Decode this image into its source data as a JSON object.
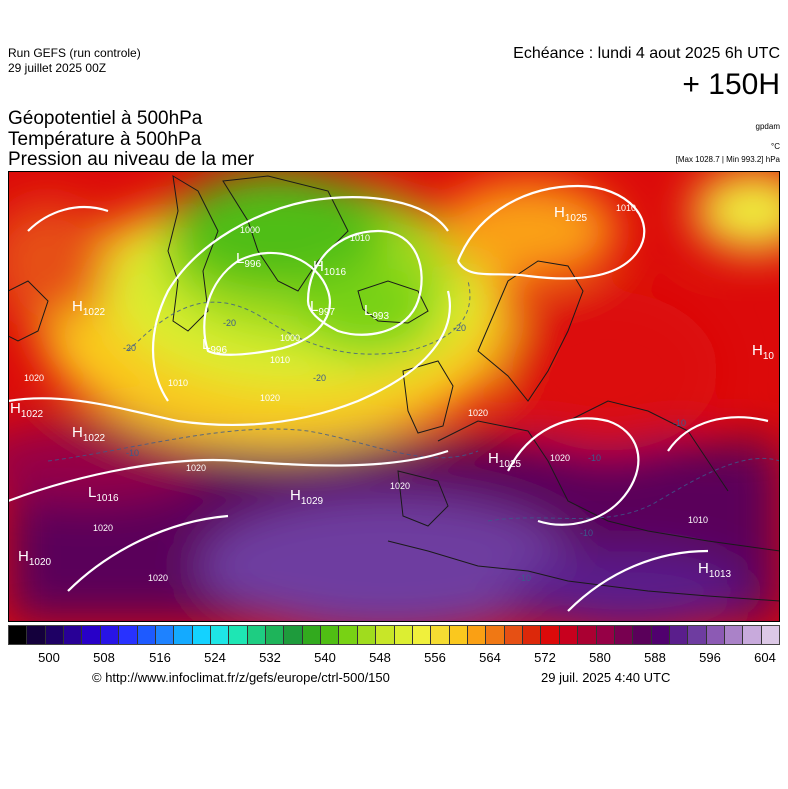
{
  "header": {
    "run_title": "Run GEFS (run controle)",
    "run_date": "29 juillet 2025 00Z",
    "echeance": "Echéance : lundi 4 aout 2025 6h UTC",
    "lead_time": "+ 150H"
  },
  "params": {
    "line1": "Géopotentiel à 500hPa",
    "line2": "Température à 500hPa",
    "line3": "Pression au niveau de la mer",
    "unit_geopotential": "gpdam",
    "unit_temperature": "°C",
    "max_min": "[Max 1028.7 | Min 993.2] hPa"
  },
  "colors": {
    "scale": [
      "#000000",
      "#14003c",
      "#1e0064",
      "#280096",
      "#2800c8",
      "#2814e6",
      "#2832ff",
      "#1e5aff",
      "#1e82ff",
      "#14aaff",
      "#14d2ff",
      "#1ee6e6",
      "#1ee6b4",
      "#1ecd82",
      "#1eb45a",
      "#1e9b3c",
      "#32aa1e",
      "#50be14",
      "#78d214",
      "#a0dc1e",
      "#c8e628",
      "#dcee32",
      "#f0f03c",
      "#f5dc32",
      "#fac81e",
      "#faa014",
      "#f07814",
      "#e65014",
      "#dc280a",
      "#dc0a0a",
      "#c8001e",
      "#aa0032",
      "#960046",
      "#780050",
      "#5a005a",
      "#50006e",
      "#5a1e8c",
      "#6e3ca0",
      "#8c5ab4",
      "#aa82c8",
      "#c8aadc",
      "#dcc8e6"
    ]
  },
  "colorbar": {
    "ticks": [
      "500",
      "508",
      "516",
      "524",
      "532",
      "540",
      "548",
      "556",
      "564",
      "572",
      "580",
      "588",
      "596",
      "604"
    ]
  },
  "pressure_systems": [
    {
      "type": "H",
      "value": "1025"
    },
    {
      "type": "L",
      "value": "996"
    },
    {
      "type": "H",
      "value": "1016"
    },
    {
      "type": "L",
      "value": "997"
    },
    {
      "type": "L",
      "value": "993"
    },
    {
      "type": "H",
      "value": "1022"
    },
    {
      "type": "L",
      "value": "996"
    },
    {
      "type": "H",
      "value": "1022"
    },
    {
      "type": "H",
      "value": "1022"
    },
    {
      "type": "L",
      "value": "1016"
    },
    {
      "type": "H",
      "value": "1029"
    },
    {
      "type": "H",
      "value": "1020"
    },
    {
      "type": "H",
      "value": "1025"
    },
    {
      "type": "H",
      "value": "1013"
    },
    {
      "type": "H",
      "value": "10"
    }
  ],
  "isobar_labels": [
    "1000",
    "1010",
    "1010",
    "1000",
    "1010",
    "1020",
    "1020",
    "1020",
    "1020",
    "1020",
    "1020",
    "1020",
    "1010",
    "1010",
    "1020"
  ],
  "isotherm_labels": [
    "-20",
    "-20",
    "-20",
    "-20",
    "-10",
    "-10",
    "-10",
    "-10",
    "-10"
  ],
  "footer": {
    "copyright": "© http://www.infoclimat.fr/z/gefs/europe/ctrl-500/150",
    "generated": "29 juil. 2025  4:40 UTC"
  }
}
